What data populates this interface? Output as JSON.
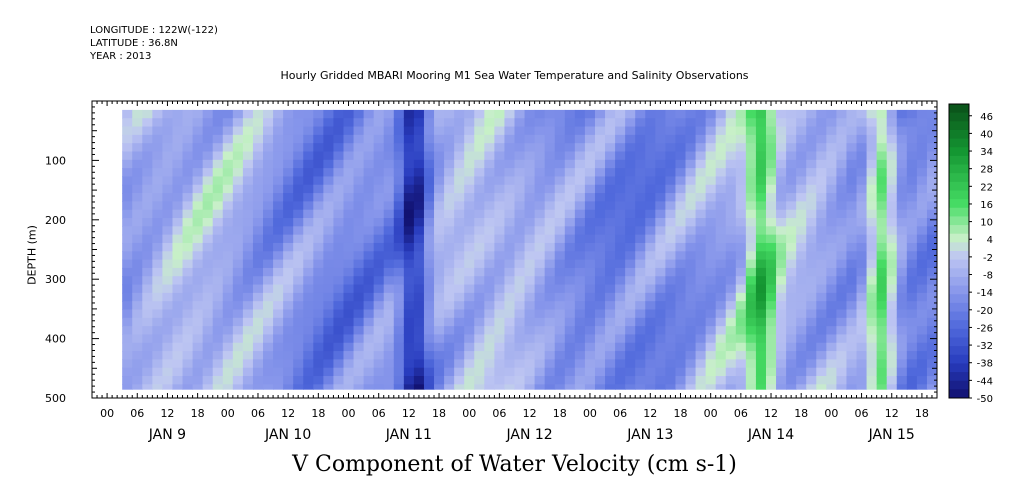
{
  "header": {
    "longitude": "LONGITUDE : 122W(-122)",
    "latitude": "LATITUDE : 36.8N",
    "year": "YEAR : 2013",
    "title": "Hourly Gridded MBARI Mooring M1 Sea Water Temperature and Salinity Observations"
  },
  "chart_data": {
    "type": "heatmap",
    "title": "Hourly Gridded MBARI Mooring M1 Sea Water Temperature and Salinity Observations",
    "xlabel": "",
    "ylabel": "DEPTH (m)",
    "bottom_title": "V Component of Water Velocity (cm s-1)",
    "x_hours_ticks": [
      "00",
      "06",
      "12",
      "18",
      "00",
      "06",
      "12",
      "18",
      "00",
      "06",
      "12",
      "18",
      "00",
      "06",
      "12",
      "18",
      "00",
      "06",
      "12",
      "18",
      "00",
      "06",
      "12",
      "18",
      "00",
      "06",
      "12",
      "18"
    ],
    "x_day_labels": [
      "JAN  9",
      "JAN 10",
      "JAN 11",
      "JAN 12",
      "JAN 13",
      "JAN 14",
      "JAN 15"
    ],
    "xlim": [
      "2013-01-08T21:00",
      "2013-01-15T21:00"
    ],
    "data_start": "2013-01-09T03:00",
    "data_end": "2013-01-15T21:00",
    "ylim": [
      0,
      500
    ],
    "y_inverted": true,
    "y_ticks": [
      100,
      200,
      300,
      400,
      500
    ],
    "depth_range_with_data": [
      15,
      485
    ],
    "colorbar": {
      "levels": [
        46,
        40,
        34,
        28,
        22,
        16,
        10,
        4,
        -2,
        -8,
        -14,
        -20,
        -26,
        -32,
        -38,
        -44,
        -50
      ],
      "range": [
        -50,
        50
      ],
      "colors": {
        "negative_deep": "#1a1a80",
        "negative_mid": "#5a6fd8",
        "negative_light": "#b8c0f0",
        "near_zero": "#c8f0c8",
        "positive_mid": "#30d050",
        "positive_deep": "#0a5a1a"
      }
    },
    "features": [
      {
        "label": "strong negative band",
        "time": "2013-01-11T12:00",
        "value_approx": -40
      },
      {
        "label": "strong positive column",
        "time": "2013-01-15T09:00",
        "value_approx": 20
      },
      {
        "label": "positive column",
        "time": "2013-01-14T09:00",
        "value_approx": 16
      }
    ]
  }
}
